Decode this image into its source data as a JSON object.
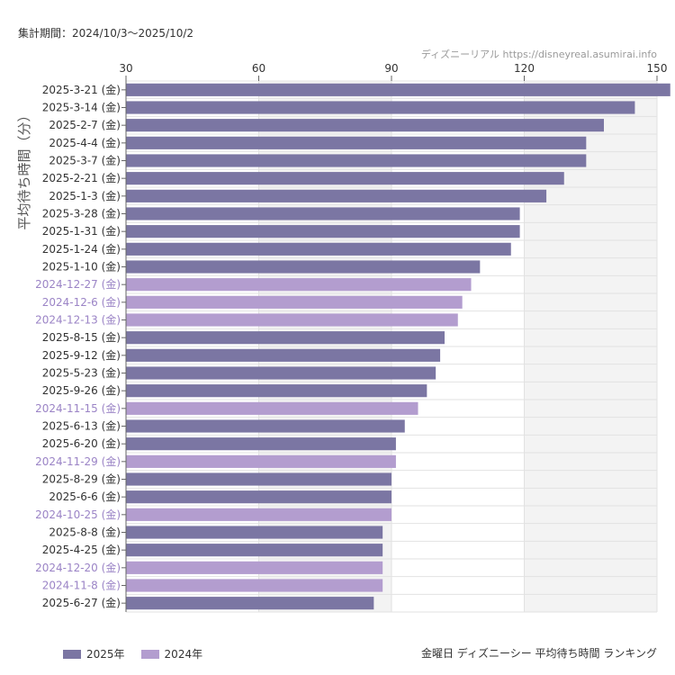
{
  "header": {
    "period": "集計期間：2024/10/3〜2025/10/2",
    "credit": "ディズニーリアル  https://disneyreal.asumirai.info"
  },
  "footer": {
    "title": "金曜日 ディズニーシー 平均待ち時間 ランキング"
  },
  "colors": {
    "y2025": "#7b76a3",
    "y2024": "#b39dcf",
    "label2025": "#333333",
    "label2024": "#9b84c6",
    "band": "#f3f3f3",
    "grid": "#e2e2e2"
  },
  "chart_data": {
    "type": "bar",
    "orientation": "horizontal",
    "ylabel": "平均待ち時間（分）",
    "xlim": [
      30,
      150
    ],
    "xticks": [
      30,
      60,
      90,
      120,
      150
    ],
    "legend": [
      {
        "key": "2025",
        "label": "2025年"
      },
      {
        "key": "2024",
        "label": "2024年"
      }
    ],
    "legend_position": "bottom-left",
    "bars": [
      {
        "label": "2025-3-21 (金)",
        "value": 153,
        "series": "2025"
      },
      {
        "label": "2025-3-14 (金)",
        "value": 145,
        "series": "2025"
      },
      {
        "label": "2025-2-7 (金)",
        "value": 138,
        "series": "2025"
      },
      {
        "label": "2025-4-4 (金)",
        "value": 134,
        "series": "2025"
      },
      {
        "label": "2025-3-7 (金)",
        "value": 134,
        "series": "2025"
      },
      {
        "label": "2025-2-21 (金)",
        "value": 129,
        "series": "2025"
      },
      {
        "label": "2025-1-3 (金)",
        "value": 125,
        "series": "2025"
      },
      {
        "label": "2025-3-28 (金)",
        "value": 119,
        "series": "2025"
      },
      {
        "label": "2025-1-31 (金)",
        "value": 119,
        "series": "2025"
      },
      {
        "label": "2025-1-24 (金)",
        "value": 117,
        "series": "2025"
      },
      {
        "label": "2025-1-10 (金)",
        "value": 110,
        "series": "2025"
      },
      {
        "label": "2024-12-27 (金)",
        "value": 108,
        "series": "2024"
      },
      {
        "label": "2024-12-6 (金)",
        "value": 106,
        "series": "2024"
      },
      {
        "label": "2024-12-13 (金)",
        "value": 105,
        "series": "2024"
      },
      {
        "label": "2025-8-15 (金)",
        "value": 102,
        "series": "2025"
      },
      {
        "label": "2025-9-12 (金)",
        "value": 101,
        "series": "2025"
      },
      {
        "label": "2025-5-23 (金)",
        "value": 100,
        "series": "2025"
      },
      {
        "label": "2025-9-26 (金)",
        "value": 98,
        "series": "2025"
      },
      {
        "label": "2024-11-15 (金)",
        "value": 96,
        "series": "2024"
      },
      {
        "label": "2025-6-13 (金)",
        "value": 93,
        "series": "2025"
      },
      {
        "label": "2025-6-20 (金)",
        "value": 91,
        "series": "2025"
      },
      {
        "label": "2024-11-29 (金)",
        "value": 91,
        "series": "2024"
      },
      {
        "label": "2025-8-29 (金)",
        "value": 90,
        "series": "2025"
      },
      {
        "label": "2025-6-6 (金)",
        "value": 90,
        "series": "2025"
      },
      {
        "label": "2024-10-25 (金)",
        "value": 90,
        "series": "2024"
      },
      {
        "label": "2025-8-8 (金)",
        "value": 88,
        "series": "2025"
      },
      {
        "label": "2025-4-25 (金)",
        "value": 88,
        "series": "2025"
      },
      {
        "label": "2024-12-20 (金)",
        "value": 88,
        "series": "2024"
      },
      {
        "label": "2024-11-8 (金)",
        "value": 88,
        "series": "2024"
      },
      {
        "label": "2025-6-27 (金)",
        "value": 86,
        "series": "2025"
      }
    ]
  }
}
